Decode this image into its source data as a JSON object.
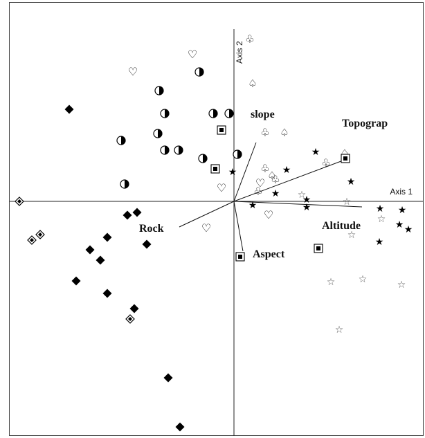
{
  "chart_data": {
    "type": "scatter",
    "title": "",
    "axis_labels": {
      "x": "Axis 1",
      "y": "Axis 2"
    },
    "xlim": [
      -3.4,
      2.8
    ],
    "ylim": [
      -3.6,
      2.6
    ],
    "grid": false,
    "legend": "none",
    "vectors": [
      {
        "label": "Topograp",
        "x": 1.6,
        "y": 0.6
      },
      {
        "label": "Altitude",
        "x": 1.85,
        "y": -0.08
      },
      {
        "label": "slope",
        "x": 0.32,
        "y": 0.85
      },
      {
        "label": "Aspect",
        "x": 0.13,
        "y": -0.72
      },
      {
        "label": "Rock",
        "x": -0.79,
        "y": -0.37
      }
    ],
    "series": [
      {
        "marker": "diamond-filled",
        "points": [
          [
            -2.38,
            1.33
          ],
          [
            -1.54,
            -0.2
          ],
          [
            -1.4,
            -0.16
          ],
          [
            -1.83,
            -0.52
          ],
          [
            -2.08,
            -0.7
          ],
          [
            -1.93,
            -0.85
          ],
          [
            -2.28,
            -1.15
          ],
          [
            -1.83,
            -1.33
          ],
          [
            -1.44,
            -1.55
          ],
          [
            -1.26,
            -0.62
          ],
          [
            -0.95,
            -2.55
          ],
          [
            -0.78,
            -3.26
          ]
        ]
      },
      {
        "marker": "diamond-dotted",
        "points": [
          [
            -3.1,
            0.0
          ],
          [
            -2.8,
            -0.48
          ],
          [
            -2.92,
            -0.56
          ],
          [
            -1.5,
            -1.7
          ]
        ]
      },
      {
        "marker": "half-circle",
        "points": [
          [
            -0.5,
            1.87
          ],
          [
            -1.08,
            1.6
          ],
          [
            -1.0,
            1.27
          ],
          [
            -0.3,
            1.27
          ],
          [
            -0.07,
            1.27
          ],
          [
            -1.1,
            0.98
          ],
          [
            -1.63,
            0.88
          ],
          [
            -1.0,
            0.74
          ],
          [
            -0.8,
            0.74
          ],
          [
            -0.45,
            0.62
          ],
          [
            0.05,
            0.68
          ],
          [
            -1.58,
            0.25
          ]
        ]
      },
      {
        "marker": "heart",
        "points": [
          [
            -0.6,
            2.13
          ],
          [
            -1.46,
            1.88
          ],
          [
            -0.18,
            0.2
          ],
          [
            0.38,
            0.27
          ],
          [
            0.5,
            -0.19
          ],
          [
            -0.4,
            -0.38
          ]
        ]
      },
      {
        "marker": "club",
        "points": [
          [
            0.23,
            2.35
          ],
          [
            0.45,
            1.0
          ],
          [
            0.45,
            0.48
          ],
          [
            0.6,
            0.32
          ],
          [
            0.35,
            0.15
          ],
          [
            1.33,
            0.56
          ]
        ]
      },
      {
        "marker": "spade",
        "points": [
          [
            0.27,
            1.71
          ],
          [
            0.73,
            1.0
          ],
          [
            0.55,
            0.38
          ],
          [
            1.6,
            0.7
          ]
        ]
      },
      {
        "marker": "boxed-square",
        "points": [
          [
            -0.18,
            1.03
          ],
          [
            -0.27,
            0.47
          ],
          [
            1.61,
            0.62
          ],
          [
            0.09,
            -0.8
          ],
          [
            1.22,
            -0.68
          ]
        ]
      },
      {
        "marker": "star-filled",
        "points": [
          [
            1.18,
            0.72
          ],
          [
            0.76,
            0.46
          ],
          [
            -0.02,
            0.43
          ],
          [
            1.69,
            0.29
          ],
          [
            0.6,
            0.12
          ],
          [
            1.05,
            0.03
          ],
          [
            0.27,
            -0.05
          ],
          [
            1.05,
            -0.08
          ],
          [
            2.11,
            -0.1
          ],
          [
            2.43,
            -0.12
          ],
          [
            2.39,
            -0.33
          ],
          [
            2.52,
            -0.4
          ],
          [
            2.1,
            -0.58
          ]
        ]
      },
      {
        "marker": "star-open",
        "points": [
          [
            0.98,
            0.1
          ],
          [
            1.63,
            0.0
          ],
          [
            2.13,
            -0.25
          ],
          [
            1.7,
            -0.48
          ],
          [
            1.4,
            -1.16
          ],
          [
            1.86,
            -1.12
          ],
          [
            2.42,
            -1.2
          ],
          [
            1.52,
            -1.85
          ]
        ]
      }
    ]
  }
}
